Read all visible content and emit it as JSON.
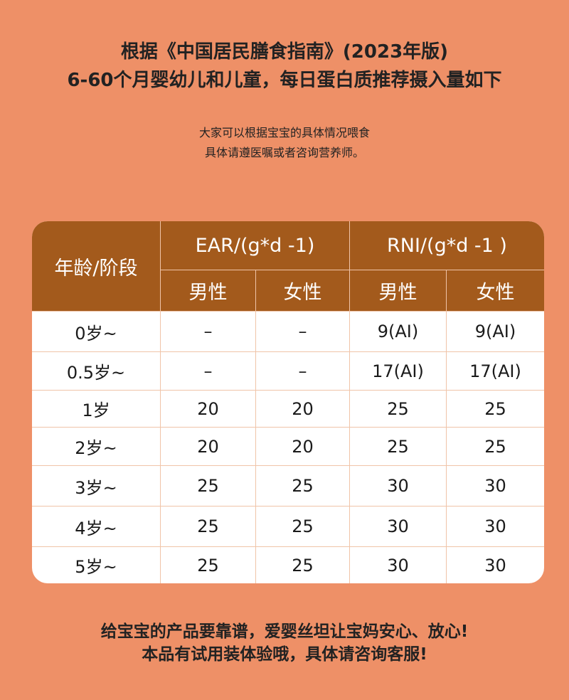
{
  "title": [
    "根据《中国居民膳食指南》(2023年版)",
    "6-60个月婴幼儿和儿童，每日蛋白质推荐摄入量如下"
  ],
  "subtitle": [
    "大家可以根据宝宝的具体情况喂食",
    "具体请遵医嘱或者咨询营养师。"
  ],
  "table": {
    "age_header": "年龄/阶段",
    "group_headers": [
      "EAR/(g*d -1)",
      "RNI/(g*d -1 )"
    ],
    "sub_headers": [
      "男性",
      "女性",
      "男性",
      "女性"
    ],
    "rows": [
      [
        "0岁~",
        "–",
        "–",
        "9(AI)",
        "9(AI)"
      ],
      [
        "0.5岁~",
        "–",
        "–",
        "17(AI)",
        "17(AI)"
      ],
      [
        "1岁",
        "20",
        "20",
        "25",
        "25"
      ],
      [
        "2岁~",
        "20",
        "20",
        "25",
        "25"
      ],
      [
        "3岁~",
        "25",
        "25",
        "30",
        "30"
      ],
      [
        "4岁~",
        "25",
        "25",
        "30",
        "30"
      ],
      [
        "5岁~",
        "25",
        "25",
        "30",
        "30"
      ]
    ]
  },
  "footer": [
    "给宝宝的产品要靠谱，爱婴丝坦让宝妈安心、放心!",
    "本品有试用装体验哦，具体请咨询客服!"
  ],
  "colors": {
    "background": "#EE9067",
    "header": "#A35A1C",
    "grid": "#F0C4A8"
  }
}
